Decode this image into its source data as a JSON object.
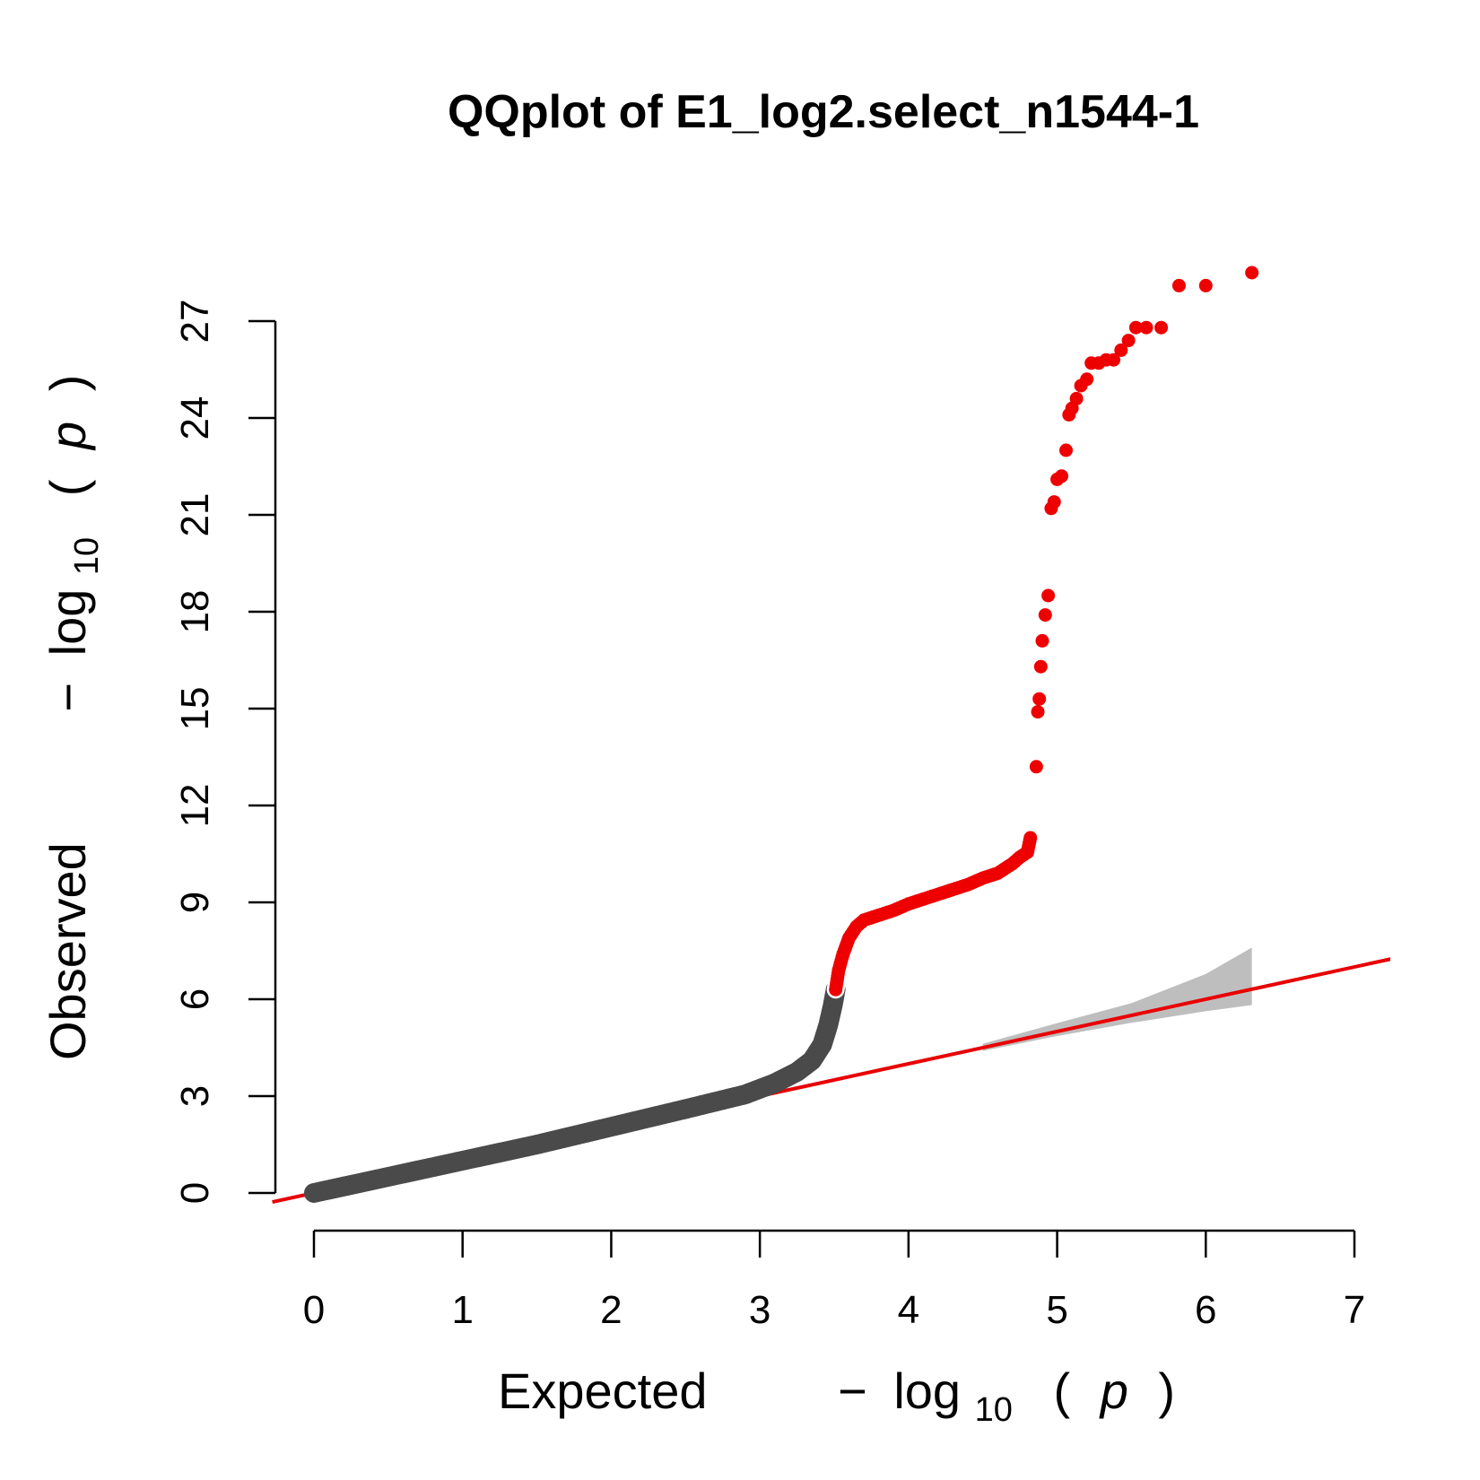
{
  "chart_data": {
    "type": "scatter",
    "title": "QQplot of E1_log2.select_n1544-1",
    "xlabel": {
      "word": "Expected",
      "minus": "−",
      "log": "log",
      "sub": "10",
      "lparen": "(",
      "p": "p",
      "rparen": ")"
    },
    "ylabel": {
      "word": "Observed",
      "minus": "−",
      "log": "log",
      "sub": "10",
      "lparen": "(",
      "p": "p",
      "rparen": ")"
    },
    "xlim": [
      0,
      7
    ],
    "ylim": [
      0,
      27
    ],
    "x_ticks": [
      0,
      1,
      2,
      3,
      4,
      5,
      6,
      7
    ],
    "y_ticks": [
      0,
      3,
      6,
      9,
      12,
      15,
      18,
      21,
      24,
      27
    ],
    "grid": false,
    "colors": {
      "below_threshold": "#4a4a4a",
      "above_threshold": "#ee0000",
      "reference_line": "#e80000",
      "confidence_band": "#bebebe"
    },
    "reference_line": {
      "slope": 1,
      "intercept": 0
    },
    "confidence_band": {
      "x": [
        4.5,
        5.0,
        5.5,
        6.0,
        6.31
      ],
      "upper": [
        4.62,
        5.26,
        5.88,
        6.78,
        7.6
      ],
      "lower": [
        4.4,
        4.86,
        5.27,
        5.63,
        5.82
      ]
    },
    "series": [
      {
        "points_x": [
          0.0,
          0.5,
          1.0,
          1.5,
          2.0,
          2.5,
          2.9,
          3.1,
          3.25,
          3.35,
          3.42,
          3.46,
          3.49,
          3.51
        ],
        "points_y": [
          0.0,
          0.5,
          1.0,
          1.5,
          2.05,
          2.6,
          3.05,
          3.4,
          3.75,
          4.1,
          4.6,
          5.2,
          5.8,
          6.3
        ]
      },
      {
        "points_x": [
          3.51,
          3.53,
          3.56,
          3.6,
          3.65,
          3.7,
          3.8,
          3.9,
          4.0,
          4.1,
          4.2,
          4.3,
          4.4,
          4.5,
          4.6,
          4.7,
          4.75,
          4.8,
          4.82,
          4.86,
          4.87,
          4.88,
          4.89,
          4.9,
          4.92,
          4.94,
          4.96,
          4.98,
          5.0,
          5.03,
          5.06,
          5.08,
          5.1,
          5.13,
          5.16,
          5.2,
          5.23,
          5.28,
          5.33,
          5.38,
          5.43,
          5.48,
          5.53,
          5.6,
          5.7,
          5.82,
          6.0,
          6.31
        ],
        "points_y": [
          6.3,
          6.9,
          7.4,
          7.9,
          8.25,
          8.45,
          8.6,
          8.75,
          8.95,
          9.1,
          9.25,
          9.4,
          9.55,
          9.75,
          9.9,
          10.2,
          10.4,
          10.55,
          11.0,
          13.2,
          14.9,
          15.3,
          16.3,
          17.1,
          17.9,
          18.5,
          21.2,
          21.4,
          22.1,
          22.2,
          23.0,
          24.1,
          24.3,
          24.6,
          25.0,
          25.2,
          25.7,
          25.7,
          25.8,
          25.8,
          26.1,
          26.4,
          26.8,
          26.8,
          26.8,
          28.1,
          28.1,
          28.5
        ]
      }
    ]
  }
}
